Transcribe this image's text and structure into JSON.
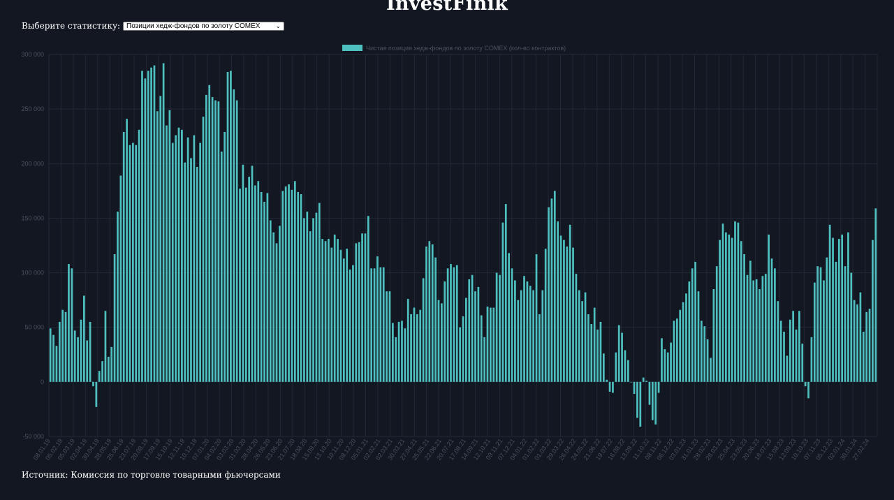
{
  "header": {
    "brand": "InvestFinik"
  },
  "controls": {
    "select_label": "Выберите статистику:",
    "select_value": "Позиции хедж-фондов по золоту COMEX"
  },
  "footer": {
    "source": "Источник: Комиссия по торговле товарными фьючерсами"
  },
  "colors": {
    "background": "#131722",
    "bar": "#4dc0bf",
    "grid": "#232836",
    "axis_text": "#4a4f5c"
  },
  "chart_data": {
    "type": "bar",
    "legend": "Чистая позиция хедж-фондов по золоту COMEX (кол-во контрактов)",
    "legend_position": "top-center",
    "grid": true,
    "ylim": [
      -50000,
      300000
    ],
    "y_ticks": [
      {
        "value": 300000,
        "label": "300 000"
      },
      {
        "value": 250000,
        "label": "250 000"
      },
      {
        "value": 200000,
        "label": "200 000"
      },
      {
        "value": 150000,
        "label": "150 000"
      },
      {
        "value": 100000,
        "label": "100 000"
      },
      {
        "value": 50000,
        "label": "50 000"
      },
      {
        "value": 0,
        "label": "0"
      },
      {
        "value": -50000,
        "label": "-50 000"
      }
    ],
    "x_tick_labels": [
      "08.01.19",
      "05.02.19",
      "05.03.19",
      "02.04.19",
      "30.04.19",
      "28.05.19",
      "25.06.19",
      "23.07.19",
      "20.08.19",
      "17.09.19",
      "15.10.19",
      "12.11.19",
      "10.12.19",
      "07.01.20",
      "04.02.20",
      "03.03.20",
      "31.03.20",
      "28.04.20",
      "26.05.20",
      "23.06.20",
      "21.07.20",
      "18.08.20",
      "15.09.20",
      "13.10.20",
      "10.11.20",
      "08.12.20",
      "05.01.21",
      "02.02.21",
      "02.03.21",
      "30.03.21",
      "27.04.21",
      "25.05.21",
      "22.06.21",
      "20.07.21",
      "17.08.21",
      "14.09.21",
      "12.10.21",
      "09.11.21",
      "07.12.21",
      "04.01.22",
      "01.02.22",
      "01.03.22",
      "29.03.22",
      "26.04.22",
      "24.05.22",
      "21.06.22",
      "19.07.22",
      "16.08.22",
      "13.09.22",
      "11.10.22",
      "08.11.22",
      "06.12.22",
      "03.01.23",
      "31.01.23",
      "28.02.23",
      "28.03.23",
      "25.04.23",
      "23.05.23",
      "20.06.23",
      "18.07.23",
      "15.08.23",
      "12.09.23",
      "10.10.23",
      "07.11.23",
      "05.12.23",
      "02.01.24",
      "30.01.24",
      "27.02.24"
    ],
    "values": [
      49000,
      43000,
      33000,
      55000,
      66000,
      64000,
      108000,
      104000,
      47000,
      41000,
      57000,
      79000,
      38000,
      55000,
      -4000,
      -23000,
      10000,
      19000,
      65000,
      23000,
      32000,
      117000,
      156000,
      189000,
      229000,
      241000,
      217000,
      219000,
      217000,
      231000,
      285000,
      278000,
      285000,
      288000,
      290000,
      248000,
      262000,
      292000,
      235000,
      249000,
      219000,
      226000,
      233000,
      231000,
      201000,
      224000,
      205000,
      226000,
      197000,
      219000,
      243000,
      263000,
      272000,
      261000,
      258000,
      257000,
      211000,
      229000,
      284000,
      285000,
      268000,
      258000,
      177000,
      199000,
      178000,
      188000,
      198000,
      180000,
      184000,
      174000,
      165000,
      173000,
      148000,
      137000,
      127000,
      143000,
      175000,
      179000,
      181000,
      176000,
      184000,
      174000,
      172000,
      150000,
      156000,
      138000,
      150000,
      155000,
      164000,
      131000,
      129000,
      131000,
      123000,
      135000,
      131000,
      121000,
      113000,
      122000,
      103000,
      107000,
      127000,
      128000,
      136000,
      136000,
      152000,
      104000,
      104000,
      115000,
      105000,
      105000,
      83000,
      83000,
      54000,
      41000,
      55000,
      56000,
      49000,
      76000,
      62000,
      68000,
      62000,
      66000,
      95000,
      124000,
      129000,
      126000,
      114000,
      75000,
      72000,
      92000,
      104000,
      108000,
      105000,
      107000,
      50000,
      60000,
      77000,
      94000,
      98000,
      83000,
      87000,
      61000,
      41000,
      69000,
      68000,
      68000,
      100000,
      98000,
      146000,
      163000,
      118000,
      104000,
      93000,
      75000,
      84000,
      97000,
      92000,
      88000,
      84000,
      117000,
      62000,
      84000,
      122000,
      160000,
      168000,
      175000,
      147000,
      134000,
      130000,
      124000,
      144000,
      123000,
      99000,
      84000,
      74000,
      82000,
      62000,
      53000,
      68000,
      48000,
      55000,
      26000,
      2000,
      -9000,
      -10000,
      27000,
      52000,
      45000,
      29000,
      20000,
      0,
      -11000,
      -33000,
      -41000,
      4000,
      1000,
      -21000,
      -35000,
      -39000,
      -10000,
      40000,
      30000,
      27000,
      36000,
      56000,
      58000,
      66000,
      73000,
      81000,
      92000,
      104000,
      110000,
      83000,
      56000,
      51000,
      39000,
      22000,
      85000,
      106000,
      130000,
      145000,
      137000,
      135000,
      132000,
      147000,
      146000,
      129000,
      117000,
      98000,
      111000,
      93000,
      94000,
      85000,
      97000,
      99000,
      135000,
      113000,
      104000,
      74000,
      56000,
      46000,
      24000,
      57000,
      65000,
      48000,
      65000,
      35000,
      -4000,
      -15000,
      41000,
      91000,
      106000,
      105000,
      93000,
      114000,
      144000,
      132000,
      110000,
      131000,
      135000,
      106000,
      137000,
      100000,
      75000,
      71000,
      82000,
      46000,
      64000,
      67000,
      130000,
      159000
    ]
  }
}
